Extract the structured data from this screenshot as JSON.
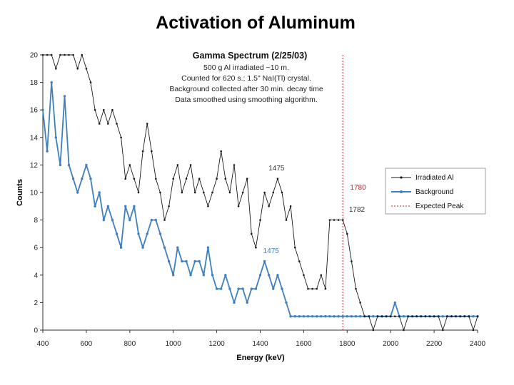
{
  "slide": {
    "title": "Activation of Aluminum"
  },
  "colors": {
    "irradiated": "#1a1a1a",
    "background": "#3e7fc0",
    "expected": "#cc2222"
  },
  "chart_data": {
    "type": "line",
    "title": "Gamma Spectrum (2/25/03)",
    "subtitle_lines": [
      "500 g Al irradiated ~10 m.",
      "Counted for 620 s.; 1.5\" NaI(Tl) crystal.",
      "Background collected after 30 min. decay time",
      "Data smoothed using smoothing algorithm."
    ],
    "xlabel": "Energy (keV)",
    "ylabel": "Counts",
    "xlim": [
      400,
      2400
    ],
    "ylim": [
      0,
      20
    ],
    "x_ticks": [
      "400",
      "600",
      "800",
      "1000",
      "1200",
      "1400",
      "1600",
      "1800",
      "2000",
      "2200",
      "2400"
    ],
    "y_ticks": [
      "0",
      "2",
      "4",
      "6",
      "8",
      "10",
      "12",
      "14",
      "16",
      "18",
      "20"
    ],
    "grid": false,
    "legend_position": "right",
    "legend": [
      "Irradiated Al",
      "Background",
      "Expected Peak"
    ],
    "expected_peak_x": 1780,
    "annotations": [
      {
        "text": "1475",
        "x": 1475,
        "y": 11.6,
        "color": "#333333"
      },
      {
        "text": "1780",
        "x": 1850,
        "y": 10.2,
        "color": "#cc2222"
      },
      {
        "text": "1782",
        "x": 1845,
        "y": 8.6,
        "color": "#333333"
      },
      {
        "text": "1475",
        "x": 1450,
        "y": 5.6,
        "color": "#3e7fc0"
      }
    ],
    "series": [
      {
        "name": "Irradiated Al",
        "x": [
          400,
          420,
          440,
          460,
          480,
          500,
          520,
          540,
          560,
          580,
          600,
          620,
          640,
          660,
          680,
          700,
          720,
          740,
          760,
          780,
          800,
          820,
          840,
          860,
          880,
          900,
          920,
          940,
          960,
          980,
          1000,
          1020,
          1040,
          1060,
          1080,
          1100,
          1120,
          1140,
          1160,
          1180,
          1200,
          1220,
          1240,
          1260,
          1280,
          1300,
          1320,
          1340,
          1360,
          1380,
          1400,
          1420,
          1440,
          1460,
          1480,
          1500,
          1520,
          1540,
          1560,
          1580,
          1600,
          1620,
          1640,
          1660,
          1680,
          1700,
          1720,
          1740,
          1760,
          1780,
          1800,
          1820,
          1840,
          1860,
          1880,
          1900,
          1920,
          1940,
          1960,
          1980,
          2000,
          2020,
          2040,
          2060,
          2080,
          2100,
          2120,
          2140,
          2160,
          2180,
          2200,
          2220,
          2240,
          2260,
          2280,
          2300,
          2320,
          2340,
          2360,
          2380,
          2400
        ],
        "values": [
          20,
          20,
          20,
          19,
          20,
          20,
          20,
          20,
          19,
          20,
          19,
          18,
          16,
          15,
          16,
          15,
          16,
          15,
          14,
          11,
          12,
          11,
          10,
          13,
          15,
          13,
          11,
          10,
          8,
          9,
          11,
          12,
          10,
          11,
          12,
          10,
          11,
          10,
          9,
          10,
          11,
          13,
          11,
          10,
          12,
          9,
          10,
          11,
          7,
          6,
          8,
          10,
          9,
          10,
          11,
          10,
          8,
          9,
          6,
          5,
          4,
          3,
          3,
          3,
          4,
          3,
          8,
          8,
          8,
          8,
          7,
          5,
          3,
          2,
          1,
          1,
          0,
          1,
          1,
          1,
          1,
          1,
          1,
          0,
          1,
          1,
          1,
          1,
          1,
          1,
          1,
          1,
          0,
          1,
          1,
          1,
          1,
          1,
          1,
          0,
          1
        ]
      },
      {
        "name": "Background",
        "x": [
          400,
          420,
          440,
          460,
          480,
          500,
          520,
          540,
          560,
          580,
          600,
          620,
          640,
          660,
          680,
          700,
          720,
          740,
          760,
          780,
          800,
          820,
          840,
          860,
          880,
          900,
          920,
          940,
          960,
          980,
          1000,
          1020,
          1040,
          1060,
          1080,
          1100,
          1120,
          1140,
          1160,
          1180,
          1200,
          1220,
          1240,
          1260,
          1280,
          1300,
          1320,
          1340,
          1360,
          1380,
          1400,
          1420,
          1440,
          1460,
          1480,
          1500,
          1520,
          1540,
          1560,
          1580,
          1600,
          1620,
          1640,
          1660,
          1680,
          1700,
          1720,
          1740,
          1760,
          1780,
          1800,
          1820,
          1840,
          1860,
          1880,
          1900,
          1920,
          1940,
          1960,
          1980,
          2000,
          2020,
          2040,
          2060,
          2080,
          2100,
          2120,
          2140,
          2160,
          2180,
          2200,
          2220,
          2240,
          2260,
          2280,
          2300,
          2320,
          2340,
          2360,
          2380,
          2400
        ],
        "values": [
          16,
          13,
          18,
          14,
          12,
          17,
          12,
          11,
          10,
          11,
          12,
          11,
          9,
          10,
          8,
          9,
          8,
          7,
          6,
          9,
          8,
          9,
          7,
          6,
          7,
          8,
          8,
          7,
          6,
          5,
          4,
          6,
          5,
          5,
          4,
          5,
          5,
          4,
          6,
          4,
          3,
          3,
          4,
          3,
          2,
          3,
          3,
          2,
          3,
          3,
          4,
          5,
          4,
          3,
          4,
          3,
          2,
          1,
          1,
          1,
          1,
          1,
          1,
          1,
          1,
          1,
          1,
          1,
          1,
          1,
          1,
          1,
          1,
          1,
          1,
          1,
          1,
          1,
          1,
          1,
          1,
          2,
          1,
          1,
          1,
          1,
          1,
          1,
          1,
          1,
          1,
          1,
          1,
          1,
          1,
          1,
          1,
          1,
          1,
          1,
          1
        ]
      }
    ]
  }
}
